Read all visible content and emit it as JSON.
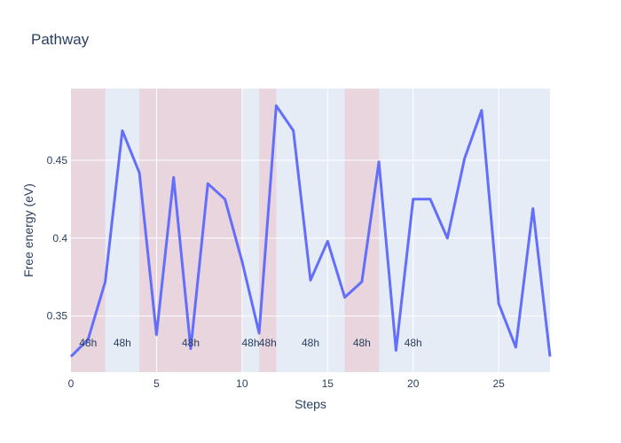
{
  "chart_data": {
    "type": "line",
    "title": "Pathway",
    "xlabel": "Steps",
    "ylabel": "Free energy (eV)",
    "xlim": [
      0,
      28
    ],
    "ylim": [
      0.314,
      0.496
    ],
    "x_ticks": [
      0,
      5,
      10,
      15,
      20,
      25
    ],
    "y_ticks": [
      0.35,
      0.4,
      0.45
    ],
    "y_tick_labels": [
      "0.35",
      "0.4",
      "0.45"
    ],
    "grid": true,
    "colors": {
      "line": "#636efa",
      "plot_bg": "#e5ecf6",
      "band": "#e8d5de",
      "grid": "#ffffff",
      "text": "#2a3f5f"
    },
    "series": [
      {
        "x": [
          0,
          1,
          2,
          3,
          4,
          5,
          6,
          7,
          8,
          9,
          10,
          11,
          12,
          13,
          14,
          15,
          16,
          17,
          18,
          19,
          20,
          21,
          22,
          23,
          24,
          25,
          26,
          27,
          28
        ],
        "y": [
          0.324,
          0.335,
          0.372,
          0.469,
          0.442,
          0.338,
          0.439,
          0.329,
          0.435,
          0.425,
          0.385,
          0.339,
          0.485,
          0.469,
          0.373,
          0.398,
          0.362,
          0.372,
          0.449,
          0.328,
          0.425,
          0.425,
          0.4,
          0.451,
          0.482,
          0.358,
          0.33,
          0.419,
          0.324
        ]
      }
    ],
    "shaded_regions": [
      {
        "x0": 0,
        "x1": 2
      },
      {
        "x0": 4,
        "x1": 10
      },
      {
        "x0": 11,
        "x1": 12
      },
      {
        "x0": 16,
        "x1": 18
      }
    ],
    "annotations": [
      {
        "x": 1,
        "text": "48h"
      },
      {
        "x": 3,
        "text": "48h"
      },
      {
        "x": 7,
        "text": "48h"
      },
      {
        "x": 10.5,
        "text": "48h"
      },
      {
        "x": 11.5,
        "text": "48h"
      },
      {
        "x": 14,
        "text": "48h"
      },
      {
        "x": 17,
        "text": "48h"
      },
      {
        "x": 20,
        "text": "48h"
      }
    ],
    "annotation_y": 0.3305
  }
}
